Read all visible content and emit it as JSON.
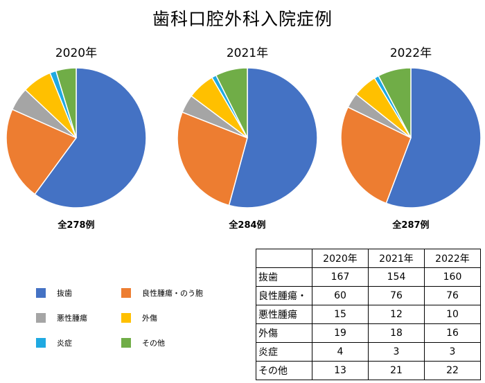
{
  "title": "歯科口腔外科入院症例",
  "chart_data": {
    "type": "pie",
    "categories": [
      "抜歯",
      "良性腫瘍・のう胞",
      "悪性腫瘍",
      "外傷",
      "炎症",
      "その他"
    ],
    "colors": [
      "#4472C4",
      "#ED7D31",
      "#A5A5A5",
      "#FFC000",
      "#1FA9E1",
      "#70AD47"
    ],
    "pies": [
      {
        "year": "2020年",
        "total": "全278例",
        "values": [
          167,
          60,
          15,
          19,
          4,
          13
        ]
      },
      {
        "year": "2021年",
        "total": "全284例",
        "values": [
          154,
          76,
          12,
          18,
          3,
          21
        ]
      },
      {
        "year": "2022年",
        "total": "全287例",
        "values": [
          160,
          76,
          10,
          16,
          3,
          22
        ]
      }
    ]
  },
  "legend": {
    "items": [
      "抜歯",
      "良性腫瘍・のう胞",
      "悪性腫瘍",
      "外傷",
      "炎症",
      "その他"
    ]
  },
  "table": {
    "headers": [
      "",
      "2020年",
      "2021年",
      "2022年"
    ],
    "rows": [
      {
        "label": "抜歯",
        "values": [
          "167",
          "154",
          "160"
        ]
      },
      {
        "label": "良性腫瘍・",
        "values": [
          "60",
          "76",
          "76"
        ]
      },
      {
        "label": "悪性腫瘍",
        "values": [
          "15",
          "12",
          "10"
        ]
      },
      {
        "label": "外傷",
        "values": [
          "19",
          "18",
          "16"
        ]
      },
      {
        "label": "炎症",
        "values": [
          "4",
          "3",
          "3"
        ]
      },
      {
        "label": "その他",
        "values": [
          "13",
          "21",
          "22"
        ]
      }
    ]
  }
}
